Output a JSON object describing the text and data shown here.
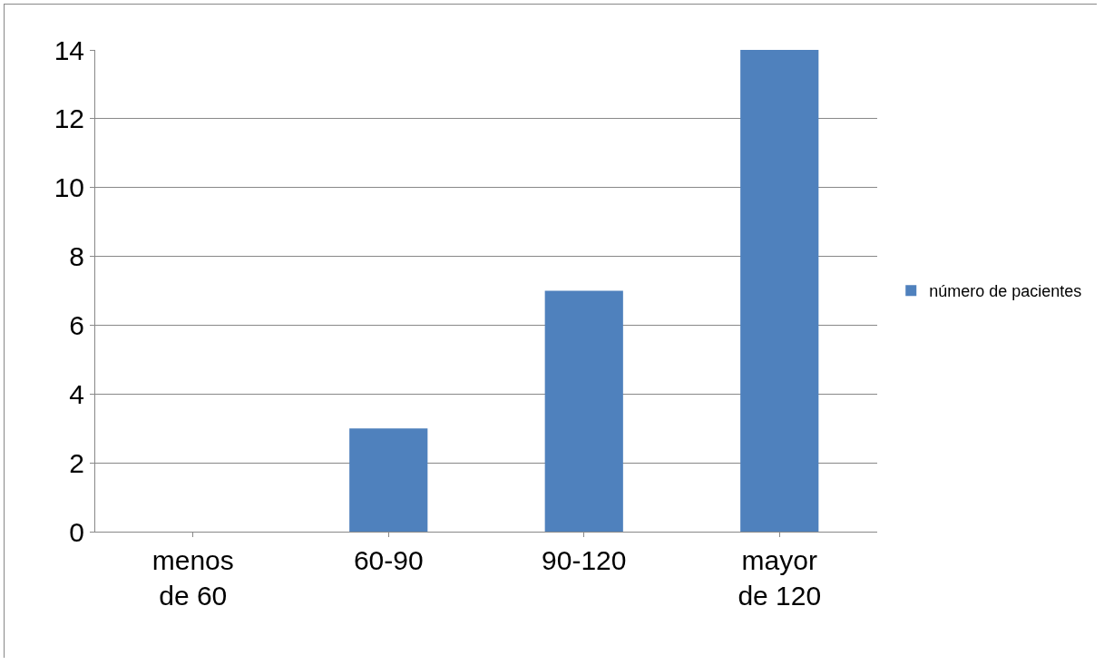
{
  "chart_data": {
    "type": "bar",
    "categories": [
      "menos de 60",
      "60-90",
      "90-120",
      "mayor de 120"
    ],
    "series": [
      {
        "name": "número de pacientes",
        "color": "#4f81bd",
        "values": [
          0,
          3,
          7,
          14
        ]
      }
    ],
    "ylim": [
      0,
      14
    ],
    "yticks": [
      0,
      2,
      4,
      6,
      8,
      10,
      12,
      14
    ],
    "grid": "y",
    "legend": "right"
  }
}
